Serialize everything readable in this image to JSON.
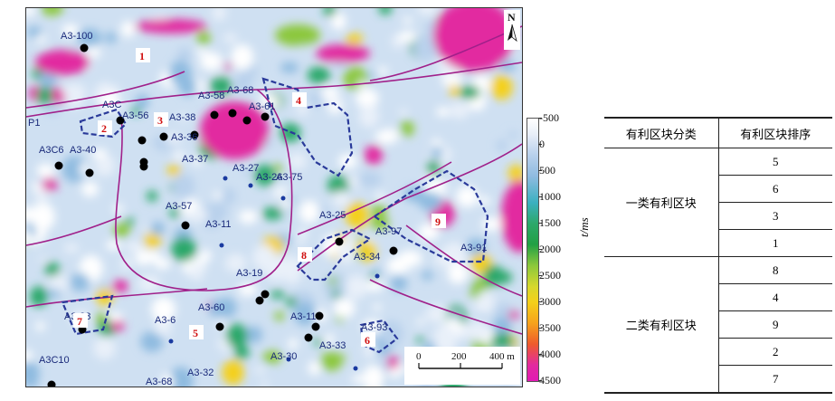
{
  "map": {
    "compass_label": "N",
    "scale": {
      "ticks": [
        "0",
        "200",
        "400 m"
      ]
    },
    "block_numbers": [
      "1",
      "2",
      "3",
      "4",
      "5",
      "6",
      "7",
      "8",
      "9"
    ],
    "wells": [
      "A3-100",
      "A3C",
      "A3-56",
      "A3-58",
      "A3-68",
      "A3-61",
      "A3-38",
      "A3-36",
      "A3C6",
      "A3-40",
      "A3-37",
      "A3-27",
      "A3-26",
      "A3-75",
      "A3-57",
      "A3-11",
      "A3-25",
      "A3-97",
      "A3-34",
      "A3-91",
      "A3-19",
      "A3-60",
      "A3-6",
      "A3-38",
      "A3-11",
      "A3-93",
      "A3-33",
      "A3-30",
      "A3C10",
      "A3-32",
      "A3-68",
      "P1"
    ],
    "palette": {
      "boundary": "#a0208a",
      "block_outline": "#2a3a9a",
      "well": "#000000",
      "block_number": "#d01010"
    }
  },
  "colorbar": {
    "label": "t/ms",
    "ticks": [
      "-500",
      "0",
      "500",
      "1000",
      "1500",
      "2000",
      "2500",
      "3000",
      "3500",
      "4000",
      "4500"
    ]
  },
  "table": {
    "headers": [
      "有利区块分类",
      "有利区块排序"
    ],
    "groups": [
      {
        "name": "一类有利区块",
        "items": [
          "5",
          "6",
          "3",
          "1"
        ]
      },
      {
        "name": "二类有利区块",
        "items": [
          "8",
          "4",
          "9",
          "2",
          "7"
        ]
      }
    ]
  }
}
